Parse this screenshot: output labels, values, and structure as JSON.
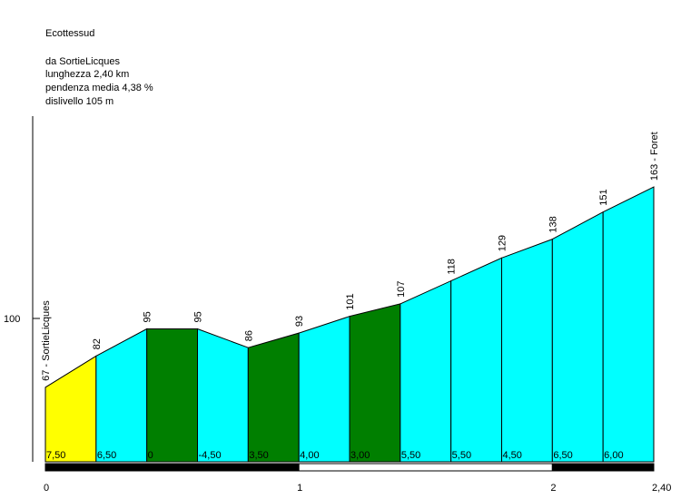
{
  "header": {
    "climb_name": "Ecottessud",
    "start_line": "da SortieLicques",
    "length_line": "lunghezza 2,40 km",
    "gradient_line": "pendenza media 4,38 %",
    "elevation_gain_line": "dislivello 105 m"
  },
  "chart_data": {
    "type": "area",
    "title": "Ecottessud",
    "x_unit": "km",
    "xlim": [
      0,
      2.4
    ],
    "x_ticks": [
      {
        "value": 0,
        "label": "0"
      },
      {
        "value": 1,
        "label": "1"
      },
      {
        "value": 2,
        "label": "2"
      },
      {
        "value": 2.4,
        "label": "2,40"
      }
    ],
    "y_ticks": [
      {
        "value": 100,
        "label": "100"
      }
    ],
    "grid": false,
    "points": [
      {
        "x": 0.0,
        "y": 67,
        "label": "67 - SortieLicques"
      },
      {
        "x": 0.2,
        "y": 82,
        "label": "82"
      },
      {
        "x": 0.4,
        "y": 95,
        "label": "95"
      },
      {
        "x": 0.6,
        "y": 95,
        "label": "95"
      },
      {
        "x": 0.8,
        "y": 86,
        "label": "86"
      },
      {
        "x": 1.0,
        "y": 93,
        "label": "93"
      },
      {
        "x": 1.2,
        "y": 101,
        "label": "101"
      },
      {
        "x": 1.4,
        "y": 107,
        "label": "107"
      },
      {
        "x": 1.6,
        "y": 118,
        "label": "118"
      },
      {
        "x": 1.8,
        "y": 129,
        "label": "129"
      },
      {
        "x": 2.0,
        "y": 138,
        "label": "138"
      },
      {
        "x": 2.2,
        "y": 151,
        "label": "151"
      },
      {
        "x": 2.4,
        "y": 163,
        "label": "163 - Foret"
      }
    ],
    "segments": [
      {
        "gradient": "7,50",
        "color": "#ffff00"
      },
      {
        "gradient": "6,50",
        "color": "#00ffff"
      },
      {
        "gradient": "0",
        "color": "#007f00"
      },
      {
        "gradient": "-4,50",
        "color": "#00ffff"
      },
      {
        "gradient": "3,50",
        "color": "#007f00"
      },
      {
        "gradient": "4,00",
        "color": "#00ffff"
      },
      {
        "gradient": "3,00",
        "color": "#007f00"
      },
      {
        "gradient": "5,50",
        "color": "#00ffff"
      },
      {
        "gradient": "5,50",
        "color": "#00ffff"
      },
      {
        "gradient": "4,50",
        "color": "#00ffff"
      },
      {
        "gradient": "6,50",
        "color": "#00ffff"
      },
      {
        "gradient": "6,00",
        "color": "#00ffff"
      }
    ],
    "km_bar": [
      {
        "from": 0,
        "to": 1,
        "color": "#000000"
      },
      {
        "from": 1,
        "to": 2,
        "color": "#ffffff"
      },
      {
        "from": 2,
        "to": 2.4,
        "color": "#000000"
      }
    ]
  }
}
